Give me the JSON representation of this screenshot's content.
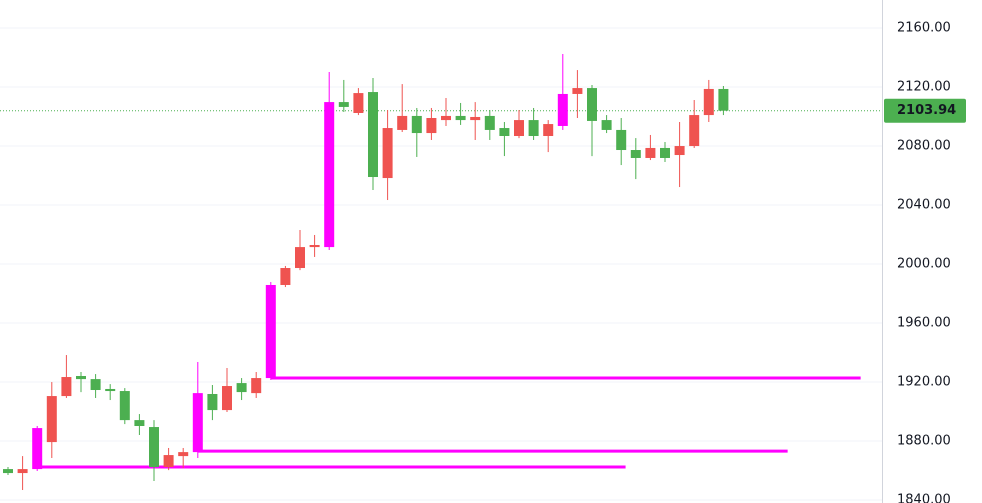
{
  "chart_data": {
    "type": "candlestick",
    "open": [
      1861.0,
      1858.3,
      1861.0,
      1879.3,
      1910.5,
      1924.1,
      1922.0,
      1915.3,
      1913.9,
      1894.2,
      1889.5,
      1862.4,
      1869.8,
      1872.5,
      1911.9,
      1901.0,
      1919.3,
      1912.5,
      1922.7,
      1985.8,
      1997.3,
      2011.5,
      2011.5,
      2109.8,
      2102.4,
      2116.6,
      2058.3,
      2090.9,
      2100.4,
      2088.8,
      2097.6,
      2100.4,
      2097.6,
      2100.4,
      2092.2,
      2086.8,
      2097.6,
      2086.8,
      2093.6,
      2115.3,
      2119.3,
      2097.6,
      2090.9,
      2077.3,
      2071.9,
      2078.7,
      2073.9,
      2080.0,
      2101.0,
      2118.7
    ],
    "high": [
      1862.4,
      1869.8,
      1890.2,
      1920.0,
      1938.3,
      1926.8,
      1925.4,
      1918.6,
      1915.9,
      1898.3,
      1894.2,
      1875.3,
      1875.3,
      1933.6,
      1918.0,
      1929.5,
      1922.7,
      1926.8,
      1987.8,
      1998.7,
      2023.1,
      2019.7,
      2130.2,
      2124.8,
      2119.3,
      2126.1,
      2104.4,
      2122.0,
      2105.8,
      2105.8,
      2112.6,
      2109.2,
      2109.8,
      2104.4,
      2096.3,
      2104.4,
      2105.8,
      2097.6,
      2142.4,
      2131.5,
      2121.4,
      2101.0,
      2099.0,
      2085.4,
      2087.5,
      2082.7,
      2096.3,
      2111.2,
      2124.8,
      2120.7
    ],
    "low": [
      1857.0,
      1846.8,
      1859.7,
      1868.5,
      1909.2,
      1913.2,
      1909.2,
      1907.8,
      1891.5,
      1884.1,
      1852.9,
      1860.3,
      1861.7,
      1868.5,
      1894.2,
      1899.7,
      1907.8,
      1909.2,
      1921.4,
      1984.4,
      1995.9,
      2004.8,
      2009.5,
      2103.1,
      2101.0,
      2050.2,
      2043.4,
      2089.5,
      2072.6,
      2084.1,
      2093.6,
      2094.3,
      2084.1,
      2084.1,
      2073.2,
      2085.4,
      2084.1,
      2075.9,
      2090.9,
      2099.0,
      2073.2,
      2088.8,
      2067.1,
      2057.6,
      2070.5,
      2069.2,
      2052.2,
      2078.7,
      2096.3,
      2101.0
    ],
    "close": [
      1858.3,
      1861.0,
      1888.8,
      1910.5,
      1923.4,
      1922.0,
      1914.6,
      1913.9,
      1894.2,
      1890.2,
      1862.4,
      1870.5,
      1872.5,
      1912.5,
      1901.0,
      1917.3,
      1913.2,
      1922.7,
      1985.8,
      1997.3,
      2011.5,
      2012.9,
      2109.8,
      2106.5,
      2115.9,
      2059.0,
      2092.2,
      2100.4,
      2088.8,
      2099.0,
      2100.4,
      2097.6,
      2099.7,
      2090.9,
      2086.8,
      2097.6,
      2086.8,
      2094.9,
      2115.3,
      2119.3,
      2097.0,
      2090.9,
      2077.3,
      2071.9,
      2078.7,
      2071.9,
      2080.0,
      2101.0,
      2118.7,
      2103.94
    ],
    "colors": [
      "#4caf50",
      "#ef5350",
      "#ff00ff",
      "#ef5350",
      "#ef5350",
      "#4caf50",
      "#4caf50",
      "#4caf50",
      "#4caf50",
      "#4caf50",
      "#4caf50",
      "#ef5350",
      "#ef5350",
      "#ff00ff",
      "#4caf50",
      "#ef5350",
      "#4caf50",
      "#ef5350",
      "#ff00ff",
      "#ef5350",
      "#ef5350",
      "#ef5350",
      "#ff00ff",
      "#4caf50",
      "#ef5350",
      "#4caf50",
      "#ef5350",
      "#ef5350",
      "#4caf50",
      "#ef5350",
      "#ef5350",
      "#4caf50",
      "#ef5350",
      "#4caf50",
      "#4caf50",
      "#ef5350",
      "#4caf50",
      "#ef5350",
      "#ff00ff",
      "#ef5350",
      "#4caf50",
      "#4caf50",
      "#4caf50",
      "#4caf50",
      "#ef5350",
      "#4caf50",
      "#ef5350",
      "#ef5350",
      "#ef5350",
      "#4caf50"
    ],
    "ylim": [
      1838,
      2179
    ],
    "yticks": [
      {
        "value": 1840,
        "label": "1840.00"
      },
      {
        "value": 1880,
        "label": "1880.00"
      },
      {
        "value": 1920,
        "label": "1920.00"
      },
      {
        "value": 1960,
        "label": "1960.00"
      },
      {
        "value": 2000,
        "label": "2000.00"
      },
      {
        "value": 2040,
        "label": "2040.00"
      },
      {
        "value": 2080,
        "label": "2080.00"
      },
      {
        "value": 2120,
        "label": "2120.00"
      },
      {
        "value": 2160,
        "label": "2160.00"
      }
    ],
    "grid": true,
    "last_price": 2103.94,
    "last_price_color": "#4caf50",
    "levels": [
      {
        "value": 1922.7,
        "start": 18,
        "end": 58.4,
        "color": "#ff00ff"
      },
      {
        "value": 1873.2,
        "start": 13,
        "end": 53.4,
        "color": "#ff00ff"
      },
      {
        "value": 1862.4,
        "start": 2,
        "end": 42.3,
        "color": "#ff00ff"
      }
    ]
  }
}
